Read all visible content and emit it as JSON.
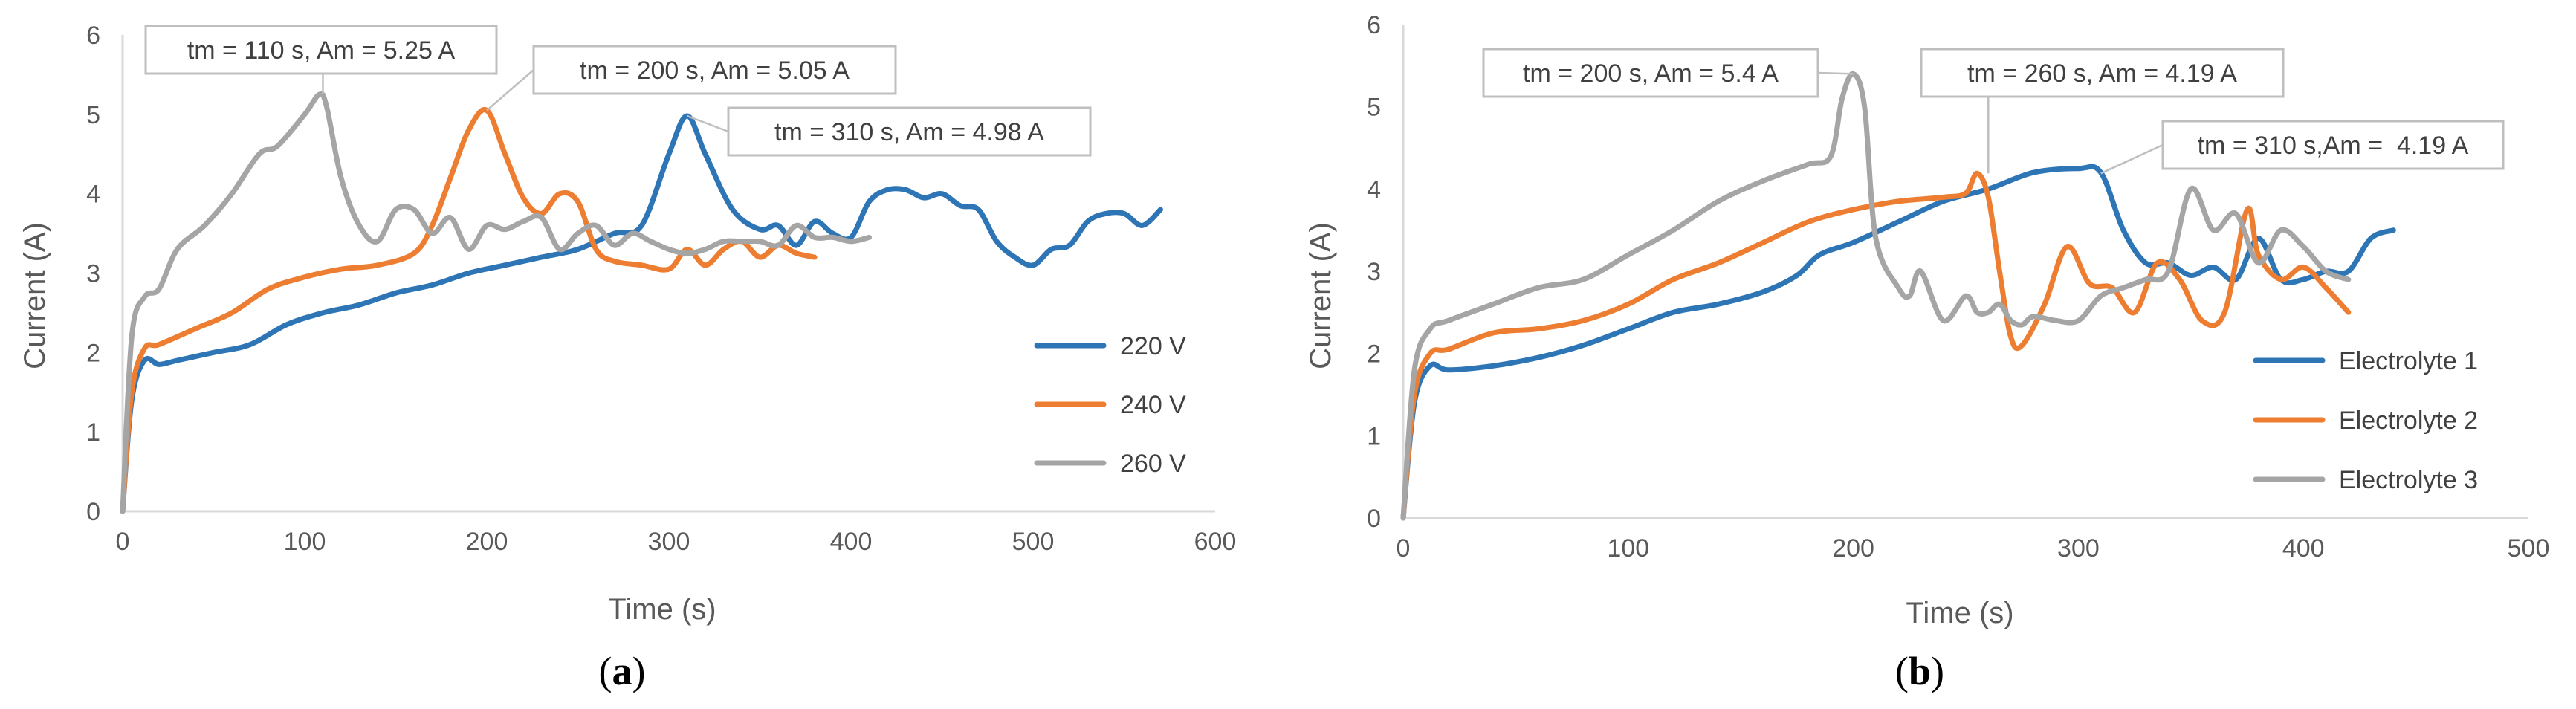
{
  "chart_data": [
    {
      "type": "line",
      "panel_label": "a",
      "title": "",
      "xlabel": "Time (s)",
      "ylabel": "Current (A)",
      "xlim": [
        0,
        600
      ],
      "ylim": [
        0,
        6
      ],
      "xticks": [
        0,
        100,
        200,
        300,
        400,
        500,
        600
      ],
      "yticks": [
        0,
        1,
        2,
        3,
        4,
        5,
        6
      ],
      "legend_position": "right",
      "series": [
        {
          "name": "220 V",
          "color": "#2e75b6",
          "x": [
            0,
            5,
            12,
            20,
            30,
            50,
            70,
            90,
            110,
            130,
            150,
            170,
            190,
            210,
            230,
            250,
            270,
            285,
            300,
            310,
            320,
            335,
            350,
            360,
            370,
            380,
            390,
            400,
            410,
            420,
            430,
            440,
            450,
            460,
            470,
            480,
            490,
            500,
            510,
            520,
            530,
            540,
            550,
            560,
            570
          ],
          "y": [
            0,
            1.4,
            1.9,
            1.85,
            1.9,
            2.0,
            2.1,
            2.35,
            2.5,
            2.6,
            2.75,
            2.85,
            3.0,
            3.1,
            3.2,
            3.3,
            3.5,
            3.6,
            4.5,
            4.98,
            4.5,
            3.8,
            3.55,
            3.6,
            3.35,
            3.65,
            3.5,
            3.45,
            3.9,
            4.05,
            4.05,
            3.95,
            4.0,
            3.85,
            3.8,
            3.4,
            3.2,
            3.1,
            3.3,
            3.35,
            3.65,
            3.75,
            3.75,
            3.6,
            3.8
          ]
        },
        {
          "name": "240 V",
          "color": "#ed7d31",
          "x": [
            0,
            5,
            12,
            20,
            40,
            60,
            80,
            100,
            120,
            140,
            160,
            170,
            180,
            190,
            200,
            210,
            220,
            230,
            240,
            250,
            260,
            270,
            285,
            300,
            310,
            320,
            330,
            340,
            350,
            360,
            370,
            380
          ],
          "y": [
            0,
            1.5,
            2.05,
            2.1,
            2.3,
            2.5,
            2.8,
            2.95,
            3.05,
            3.1,
            3.25,
            3.6,
            4.2,
            4.8,
            5.05,
            4.5,
            3.95,
            3.75,
            4.0,
            3.9,
            3.3,
            3.15,
            3.1,
            3.05,
            3.3,
            3.1,
            3.3,
            3.4,
            3.2,
            3.35,
            3.25,
            3.2
          ]
        },
        {
          "name": "260 V",
          "color": "#a5a5a5",
          "x": [
            0,
            5,
            12,
            20,
            30,
            45,
            60,
            75,
            85,
            100,
            108,
            112,
            120,
            130,
            140,
            150,
            160,
            170,
            180,
            190,
            200,
            210,
            220,
            230,
            240,
            250,
            260,
            270,
            280,
            290,
            300,
            310,
            320,
            330,
            340,
            350,
            360,
            370,
            380,
            390,
            400,
            410
          ],
          "y": [
            0,
            2.2,
            2.7,
            2.8,
            3.3,
            3.6,
            4.0,
            4.5,
            4.6,
            5.0,
            5.25,
            5.1,
            4.2,
            3.6,
            3.4,
            3.8,
            3.8,
            3.5,
            3.7,
            3.3,
            3.6,
            3.55,
            3.65,
            3.7,
            3.3,
            3.5,
            3.6,
            3.35,
            3.5,
            3.4,
            3.3,
            3.25,
            3.3,
            3.4,
            3.4,
            3.4,
            3.35,
            3.6,
            3.45,
            3.45,
            3.4,
            3.45
          ]
        }
      ],
      "annotations": [
        {
          "text": "tm = 110 s, Am = 5.25 A",
          "x": 110,
          "y": 5.25
        },
        {
          "text": "tm = 200 s, Am = 5.05 A",
          "x": 200,
          "y": 5.05
        },
        {
          "text": "tm = 310 s, Am = 4.98 A",
          "x": 310,
          "y": 4.98
        }
      ]
    },
    {
      "type": "line",
      "panel_label": "b",
      "title": "",
      "xlabel": "Time (s)",
      "ylabel": "Current (A)",
      "xlim": [
        0,
        500
      ],
      "ylim": [
        0,
        6
      ],
      "xticks": [
        0,
        100,
        200,
        300,
        400,
        500
      ],
      "yticks": [
        0,
        1,
        2,
        3,
        4,
        5,
        6
      ],
      "legend_position": "right",
      "series": [
        {
          "name": "Electrolyte 1",
          "color": "#2e75b6",
          "x": [
            0,
            5,
            12,
            20,
            40,
            60,
            80,
            100,
            120,
            140,
            160,
            175,
            185,
            200,
            220,
            240,
            260,
            280,
            300,
            310,
            320,
            330,
            340,
            350,
            360,
            370,
            380,
            390,
            400,
            410,
            420,
            430,
            440
          ],
          "y": [
            0,
            1.4,
            1.85,
            1.8,
            1.85,
            1.95,
            2.1,
            2.3,
            2.5,
            2.6,
            2.75,
            2.95,
            3.2,
            3.35,
            3.6,
            3.85,
            4.0,
            4.2,
            4.25,
            4.2,
            3.5,
            3.1,
            3.1,
            2.95,
            3.05,
            2.9,
            3.4,
            2.9,
            2.9,
            3.0,
            3.0,
            3.4,
            3.5
          ]
        },
        {
          "name": "Electrolyte 2",
          "color": "#ed7d31",
          "x": [
            0,
            5,
            12,
            20,
            40,
            60,
            80,
            100,
            120,
            140,
            160,
            180,
            200,
            220,
            240,
            250,
            255,
            260,
            265,
            270,
            275,
            285,
            295,
            305,
            315,
            325,
            335,
            345,
            355,
            365,
            375,
            380,
            390,
            400,
            410,
            420
          ],
          "y": [
            0,
            1.5,
            2.0,
            2.05,
            2.25,
            2.3,
            2.4,
            2.6,
            2.9,
            3.1,
            3.35,
            3.6,
            3.75,
            3.85,
            3.9,
            3.95,
            4.19,
            3.9,
            3.0,
            2.2,
            2.1,
            2.6,
            3.3,
            2.85,
            2.8,
            2.5,
            3.1,
            2.9,
            2.4,
            2.5,
            3.75,
            3.2,
            2.9,
            3.05,
            2.8,
            2.5
          ]
        },
        {
          "name": "Electrolyte 3",
          "color": "#a5a5a5",
          "x": [
            0,
            5,
            12,
            20,
            40,
            60,
            80,
            100,
            120,
            140,
            160,
            180,
            190,
            195,
            200,
            205,
            210,
            220,
            225,
            230,
            240,
            250,
            255,
            260,
            265,
            270,
            275,
            280,
            290,
            300,
            310,
            320,
            330,
            340,
            350,
            360,
            370,
            380,
            390,
            400,
            410,
            420
          ],
          "y": [
            0,
            1.8,
            2.3,
            2.4,
            2.6,
            2.8,
            2.9,
            3.2,
            3.5,
            3.85,
            4.1,
            4.3,
            4.4,
            5.1,
            5.4,
            5.0,
            3.4,
            2.8,
            2.7,
            3.0,
            2.4,
            2.7,
            2.5,
            2.5,
            2.6,
            2.4,
            2.35,
            2.45,
            2.4,
            2.4,
            2.7,
            2.8,
            2.9,
            3.0,
            4.0,
            3.5,
            3.7,
            3.1,
            3.5,
            3.3,
            3.0,
            2.9
          ]
        }
      ],
      "annotations": [
        {
          "text": "tm = 200 s, Am = 5.4 A",
          "x": 200,
          "y": 5.4
        },
        {
          "text": "tm = 260 s, Am = 4.19 A",
          "x": 260,
          "y": 4.19
        },
        {
          "text": "tm = 310 s,Am =  4.19 A",
          "x": 310,
          "y": 4.19
        }
      ]
    }
  ]
}
